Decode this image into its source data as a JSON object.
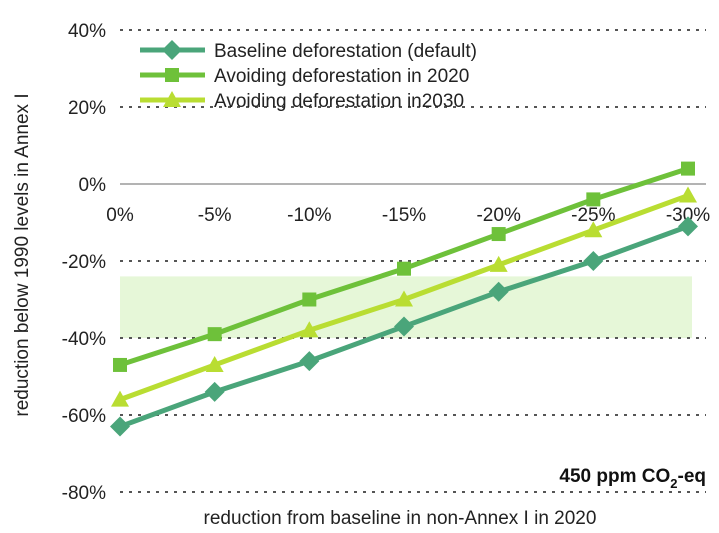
{
  "chart_data": {
    "type": "line",
    "title": "",
    "xlabel": "reduction from baseline in non-Annex I in 2020",
    "ylabel": "reduction below 1990 levels in Annex I",
    "categories": [
      "0%",
      "-5%",
      "-10%",
      "-15%",
      "-20%",
      "-25%",
      "-30%"
    ],
    "y_ticks": [
      "40%",
      "20%",
      "0%",
      "-20%",
      "-40%",
      "-60%",
      "-80%"
    ],
    "ylim": [
      -80,
      40
    ],
    "grid": "horizontal dashed",
    "legend_position": "top-left",
    "annotation": {
      "text": "450 ppm CO",
      "subscript": "2",
      "suffix": "-eq"
    },
    "shaded_band": {
      "y_from": -24,
      "y_to": -40,
      "color": "#e6f7d8"
    },
    "series": [
      {
        "name": "Baseline deforestation (default)",
        "marker": "diamond",
        "color": "#4aa57a",
        "values": [
          -63,
          -54,
          -46,
          -37,
          -28,
          -20,
          -11
        ]
      },
      {
        "name": "Avoiding deforestation in 2020",
        "marker": "square",
        "color": "#6ec13a",
        "values": [
          -47,
          -39,
          -30,
          -22,
          -13,
          -4,
          4
        ]
      },
      {
        "name": "Avoiding deforestation in2030",
        "marker": "triangle",
        "color": "#b9dd32",
        "values": [
          -56,
          -47,
          -38,
          -30,
          -21,
          -12,
          -3
        ]
      }
    ]
  }
}
